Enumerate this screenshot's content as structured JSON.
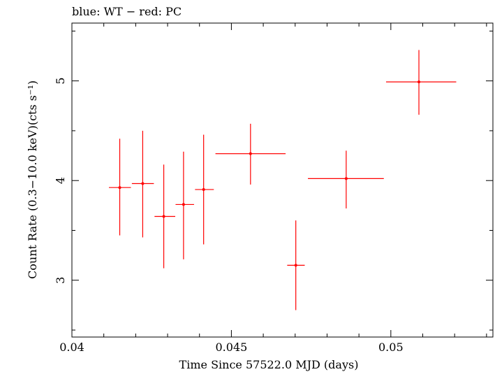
{
  "chart_data": {
    "type": "scatter",
    "title": "blue: WT − red: PC",
    "xlabel": "Time Since 57522.0 MJD (days)",
    "ylabel": "Count Rate (0.3−10.0 keV)(cts s⁻¹)",
    "xlim": [
      0.04,
      0.0532
    ],
    "ylim": [
      2.43,
      5.58
    ],
    "x_ticks": [
      {
        "value": 0.04,
        "label": "0.04"
      },
      {
        "value": 0.045,
        "label": "0.045"
      },
      {
        "value": 0.05,
        "label": "0.05"
      }
    ],
    "y_ticks": [
      {
        "value": 3,
        "label": "3"
      },
      {
        "value": 4,
        "label": "4"
      },
      {
        "value": 5,
        "label": "5"
      }
    ],
    "grid": false,
    "series": [
      {
        "color": "#ff0000",
        "points": [
          {
            "x": 0.0415,
            "y": 3.93,
            "xerr": [
              0.04116,
              0.04185
            ],
            "yerr": [
              3.45,
              4.42
            ]
          },
          {
            "x": 0.04222,
            "y": 3.97,
            "xerr": [
              0.04188,
              0.04257
            ],
            "yerr": [
              3.43,
              4.5
            ]
          },
          {
            "x": 0.04288,
            "y": 3.64,
            "xerr": [
              0.04259,
              0.04324
            ],
            "yerr": [
              3.12,
              4.16
            ]
          },
          {
            "x": 0.0435,
            "y": 3.76,
            "xerr": [
              0.04325,
              0.04383
            ],
            "yerr": [
              3.21,
              4.29
            ]
          },
          {
            "x": 0.04413,
            "y": 3.91,
            "xerr": [
              0.04386,
              0.04445
            ],
            "yerr": [
              3.36,
              4.46
            ]
          },
          {
            "x": 0.0456,
            "y": 4.27,
            "xerr": [
              0.0445,
              0.0467
            ],
            "yerr": [
              3.96,
              4.57
            ]
          },
          {
            "x": 0.04702,
            "y": 3.15,
            "xerr": [
              0.04675,
              0.0473
            ],
            "yerr": [
              2.7,
              3.6
            ]
          },
          {
            "x": 0.0486,
            "y": 4.02,
            "xerr": [
              0.0474,
              0.04978
            ],
            "yerr": [
              3.72,
              4.3
            ]
          },
          {
            "x": 0.05088,
            "y": 4.99,
            "xerr": [
              0.04985,
              0.05205
            ],
            "yerr": [
              4.66,
              5.31
            ]
          }
        ]
      }
    ]
  }
}
